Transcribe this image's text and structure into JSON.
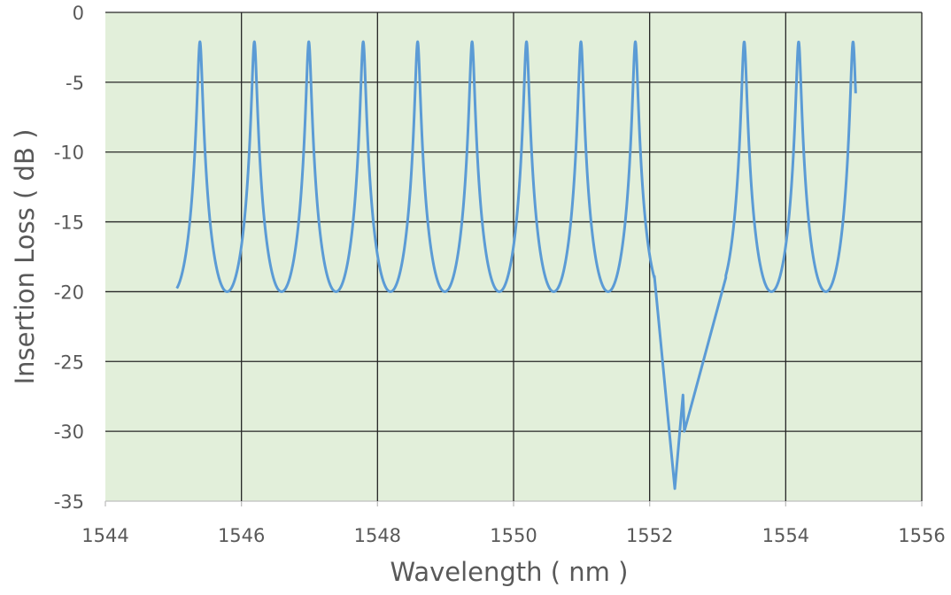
{
  "chart_data": {
    "type": "line",
    "title": "",
    "xlabel": "Wavelength ( nm )",
    "ylabel": "Insertion Loss ( dB )",
    "xlim": [
      1544,
      1556
    ],
    "ylim": [
      -35,
      0
    ],
    "xticks": [
      1544,
      1546,
      1548,
      1550,
      1552,
      1554,
      1556
    ],
    "yticks": [
      0,
      -5,
      -10,
      -15,
      -20,
      -25,
      -30,
      -35
    ],
    "grid": true,
    "legend": "none",
    "colors": {
      "plot_background": "#E2EFDA",
      "line": "#5B9BD5",
      "grid": "#262626"
    },
    "series": [
      {
        "name": "Insertion Loss",
        "x_range": [
          1545.05,
          1555.03
        ],
        "periodic_model": {
          "first_peak_nm": 1545.39,
          "spacing_nm": 0.8,
          "peak_db": -2.1,
          "trough_db": -20.0
        },
        "peaks_nm": [
          1545.39,
          1546.19,
          1546.99,
          1547.79,
          1548.59,
          1549.39,
          1550.19,
          1550.99,
          1551.79,
          1553.39,
          1554.19,
          1554.99
        ],
        "anomaly_points": [
          [
            1552.07,
            -18.9
          ],
          [
            1552.37,
            -34.1
          ],
          [
            1552.49,
            -27.4
          ],
          [
            1552.51,
            -30.0
          ],
          [
            1553.12,
            -19.0
          ]
        ]
      }
    ]
  }
}
